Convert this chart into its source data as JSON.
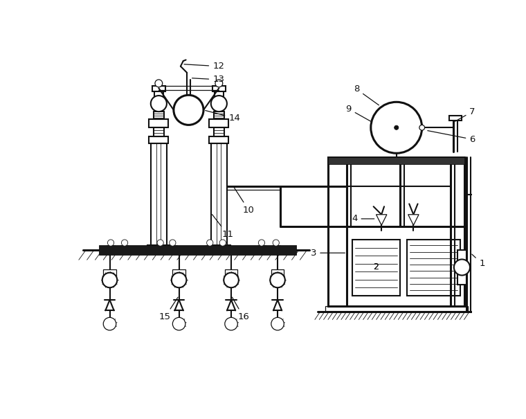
{
  "bg_color": "#ffffff",
  "line_color": "#111111",
  "fig_width": 7.6,
  "fig_height": 6.05,
  "lw_thick": 2.2,
  "lw_main": 1.5,
  "lw_thin": 0.9,
  "lw_hair": 0.6
}
